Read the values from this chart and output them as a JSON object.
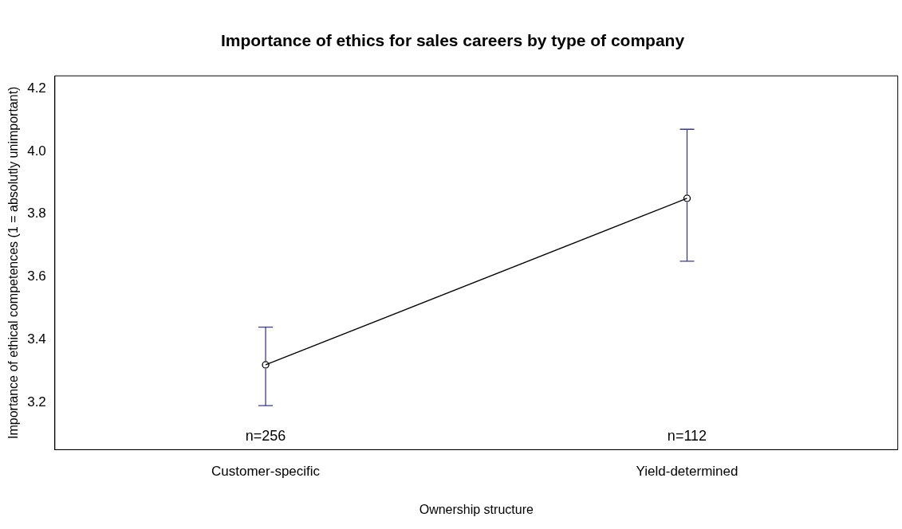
{
  "chart_data": {
    "type": "line",
    "title": "Importance of ethics for sales careers by type of company",
    "xlabel": "Ownership structure",
    "ylabel": "Importance of ethical competences (1 = absolutly unimportant)",
    "categories": [
      "Customer-specific",
      "Yield-determined"
    ],
    "series": [
      {
        "color": "#000000",
        "values": [
          3.32,
          3.85
        ],
        "errors": [
          [
            3.19,
            3.44
          ],
          [
            3.65,
            4.07
          ]
        ]
      }
    ],
    "ylim": [
      3.05,
      4.24
    ],
    "yticks": [
      3.2,
      3.4,
      3.6,
      3.8,
      {
        "value": 4,
        "label": "4.0"
      },
      4.2
    ],
    "grid": false,
    "legend": false,
    "marker": "circle",
    "line_style": "solid",
    "annotations": [
      "n=256",
      "n=112"
    ]
  }
}
